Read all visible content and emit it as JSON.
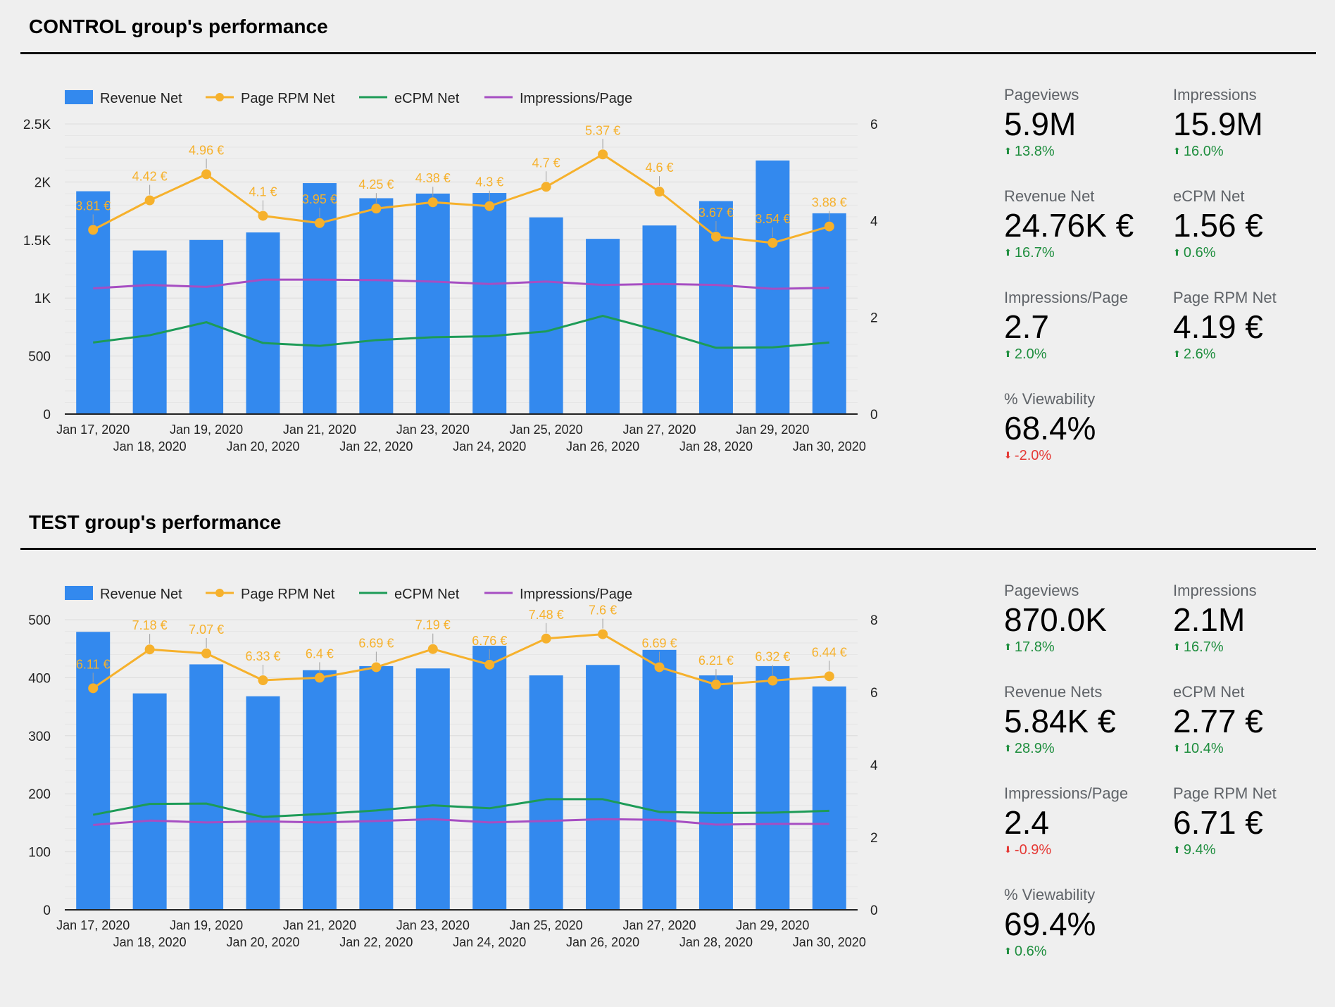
{
  "sections": [
    {
      "title": "CONTROL group's performance",
      "scorecards": [
        {
          "label": "Pageviews",
          "value": "5.9M",
          "delta": "13.8%",
          "direction": "up"
        },
        {
          "label": "Impressions",
          "value": "15.9M",
          "delta": "16.0%",
          "direction": "up"
        },
        {
          "label": "Revenue Net",
          "value": "24.76K €",
          "delta": "16.7%",
          "direction": "up"
        },
        {
          "label": "eCPM Net",
          "value": "1.56 €",
          "delta": "0.6%",
          "direction": "up"
        },
        {
          "label": "Impressions/Page",
          "value": "2.7",
          "delta": "2.0%",
          "direction": "up"
        },
        {
          "label": "Page RPM Net",
          "value": "4.19 €",
          "delta": "2.6%",
          "direction": "up"
        },
        {
          "label": "% Viewability",
          "value": "68.4%",
          "delta": "-2.0%",
          "direction": "down"
        }
      ]
    },
    {
      "title": "TEST group's performance",
      "scorecards": [
        {
          "label": "Pageviews",
          "value": "870.0K",
          "delta": "17.8%",
          "direction": "up"
        },
        {
          "label": "Impressions",
          "value": "2.1M",
          "delta": "16.7%",
          "direction": "up"
        },
        {
          "label": "Revenue Nets",
          "value": "5.84K €",
          "delta": "28.9%",
          "direction": "up"
        },
        {
          "label": "eCPM Net",
          "value": "2.77 €",
          "delta": "10.4%",
          "direction": "up"
        },
        {
          "label": "Impressions/Page",
          "value": "2.4",
          "delta": "-0.9%",
          "direction": "down"
        },
        {
          "label": "Page RPM Net",
          "value": "6.71 €",
          "delta": "9.4%",
          "direction": "up"
        },
        {
          "label": "% Viewability",
          "value": "69.4%",
          "delta": "0.6%",
          "direction": "up"
        }
      ]
    }
  ],
  "colors": {
    "revenue": "#3389ee",
    "rpm": "#f6b12c",
    "ecpm": "#1d9b57",
    "imp": "#a64ec2",
    "up": "#1e8e3e",
    "down": "#e53935"
  },
  "chart_data": [
    {
      "type": "bar",
      "categories": [
        "Jan 17, 2020",
        "Jan 18, 2020",
        "Jan 19, 2020",
        "Jan 20, 2020",
        "Jan 21, 2020",
        "Jan 22, 2020",
        "Jan 23, 2020",
        "Jan 24, 2020",
        "Jan 25, 2020",
        "Jan 26, 2020",
        "Jan 27, 2020",
        "Jan 28, 2020",
        "Jan 29, 2020",
        "Jan 30, 2020"
      ],
      "y_left": {
        "ticks": [
          "0",
          "500",
          "1K",
          "1.5K",
          "2K",
          "2.5K"
        ],
        "range": [
          0,
          2500
        ]
      },
      "y_right": {
        "ticks": [
          "0",
          "2",
          "4",
          "6"
        ],
        "range": [
          0,
          6
        ]
      },
      "grid": true,
      "legend_position": "top-left",
      "series": [
        {
          "name": "Revenue Net",
          "type": "bar",
          "axis": "left",
          "values": [
            1920,
            1410,
            1500,
            1565,
            1990,
            1860,
            1900,
            1905,
            1695,
            1510,
            1625,
            1835,
            2185,
            1730
          ]
        },
        {
          "name": "Page RPM Net",
          "type": "line",
          "axis": "right",
          "markers": true,
          "values": [
            3.81,
            4.42,
            4.96,
            4.1,
            3.95,
            4.25,
            4.38,
            4.3,
            4.7,
            5.37,
            4.6,
            3.67,
            3.54,
            3.88
          ],
          "labels": [
            "3.81 €",
            "4.42 €",
            "4.96 €",
            "4.1 €",
            "3.95 €",
            "4.25 €",
            "4.38 €",
            "4.3 €",
            "4.7 €",
            "5.37 €",
            "4.6 €",
            "3.67 €",
            "3.54 €",
            "3.88 €"
          ]
        },
        {
          "name": "eCPM Net",
          "type": "line",
          "axis": "right",
          "values": [
            1.48,
            1.63,
            1.9,
            1.47,
            1.41,
            1.53,
            1.59,
            1.61,
            1.71,
            2.03,
            1.72,
            1.37,
            1.38,
            1.48
          ]
        },
        {
          "name": "Impressions/Page",
          "type": "line",
          "axis": "right",
          "values": [
            2.6,
            2.67,
            2.63,
            2.78,
            2.78,
            2.77,
            2.74,
            2.69,
            2.74,
            2.67,
            2.69,
            2.67,
            2.59,
            2.61
          ]
        }
      ]
    },
    {
      "type": "bar",
      "categories": [
        "Jan 17, 2020",
        "Jan 18, 2020",
        "Jan 19, 2020",
        "Jan 20, 2020",
        "Jan 21, 2020",
        "Jan 22, 2020",
        "Jan 23, 2020",
        "Jan 24, 2020",
        "Jan 25, 2020",
        "Jan 26, 2020",
        "Jan 27, 2020",
        "Jan 28, 2020",
        "Jan 29, 2020",
        "Jan 30, 2020"
      ],
      "y_left": {
        "ticks": [
          "0",
          "100",
          "200",
          "300",
          "400",
          "500"
        ],
        "range": [
          0,
          500
        ]
      },
      "y_right": {
        "ticks": [
          "0",
          "2",
          "4",
          "6",
          "8"
        ],
        "range": [
          0,
          8
        ]
      },
      "grid": true,
      "legend_position": "top-left",
      "series": [
        {
          "name": "Revenue Net",
          "type": "bar",
          "axis": "left",
          "values": [
            479,
            373,
            423,
            368,
            413,
            420,
            416,
            455,
            404,
            422,
            448,
            404,
            420,
            385
          ]
        },
        {
          "name": "Page RPM Net",
          "type": "line",
          "axis": "right",
          "markers": true,
          "values": [
            6.11,
            7.18,
            7.07,
            6.33,
            6.4,
            6.69,
            7.19,
            6.76,
            7.48,
            7.6,
            6.69,
            6.21,
            6.32,
            6.44
          ],
          "labels": [
            "6.11 €",
            "7.18 €",
            "7.07 €",
            "6.33 €",
            "6.4 €",
            "6.69 €",
            "7.19 €",
            "6.76 €",
            "7.48 €",
            "7.6 €",
            "6.69 €",
            "6.21 €",
            "6.32 €",
            "6.44 €"
          ]
        },
        {
          "name": "eCPM Net",
          "type": "line",
          "axis": "right",
          "values": [
            2.62,
            2.92,
            2.93,
            2.56,
            2.64,
            2.74,
            2.88,
            2.8,
            3.05,
            3.05,
            2.7,
            2.67,
            2.68,
            2.73
          ]
        },
        {
          "name": "Impressions/Page",
          "type": "line",
          "axis": "right",
          "values": [
            2.34,
            2.46,
            2.41,
            2.44,
            2.41,
            2.45,
            2.5,
            2.41,
            2.45,
            2.5,
            2.48,
            2.35,
            2.37,
            2.37
          ]
        }
      ]
    }
  ]
}
